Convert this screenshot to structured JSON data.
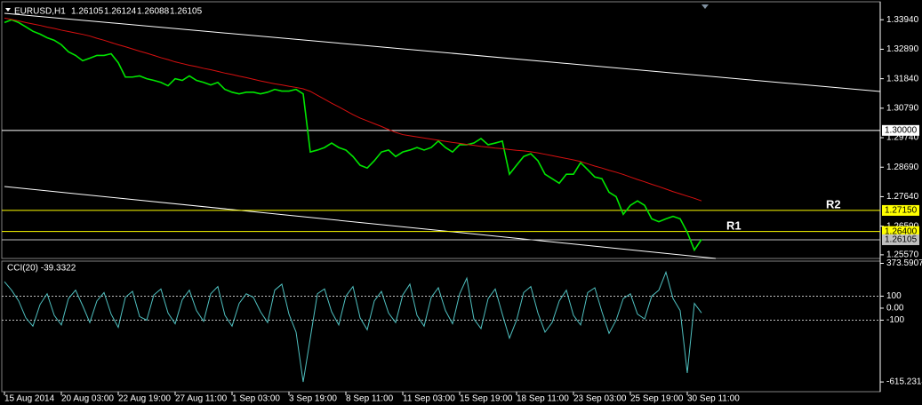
{
  "chart_data": [
    {
      "type": "line",
      "title": "EURUSD,H1",
      "ohlc": [
        1.26105,
        1.26124,
        1.26088,
        1.26105
      ],
      "categories": [
        "15 Aug 2014",
        null,
        null,
        null,
        null,
        null,
        null,
        null,
        "20 Aug 03:00",
        null,
        null,
        null,
        null,
        null,
        null,
        null,
        "22 Aug 19:00",
        null,
        null,
        null,
        null,
        null,
        null,
        null,
        "27 Aug 11:00",
        null,
        null,
        null,
        null,
        null,
        null,
        null,
        "1 Sep 03:00",
        null,
        null,
        null,
        null,
        null,
        null,
        null,
        "3 Sep 19:00",
        null,
        null,
        null,
        null,
        null,
        null,
        null,
        "8 Sep 11:00",
        null,
        null,
        null,
        null,
        null,
        null,
        null,
        "11 Sep 03:00",
        null,
        null,
        null,
        null,
        null,
        null,
        null,
        "15 Sep 19:00",
        null,
        null,
        null,
        null,
        null,
        null,
        null,
        "18 Sep 11:00",
        null,
        null,
        null,
        null,
        null,
        null,
        null,
        "23 Sep 03:00",
        null,
        null,
        null,
        null,
        null,
        null,
        null,
        "25 Sep 19:00",
        null,
        null,
        null,
        null,
        null,
        null,
        null,
        "30 Sep 11:00",
        null,
        null
      ],
      "series": [
        {
          "color": "#00e600",
          "values": [
            1.3384,
            1.3394,
            1.3384,
            1.3369,
            1.3353,
            1.3343,
            1.333,
            1.3321,
            1.3305,
            1.328,
            1.3267,
            1.3248,
            1.3257,
            1.3267,
            1.3267,
            1.3273,
            1.3241,
            1.319,
            1.319,
            1.3194,
            1.3184,
            1.3178,
            1.3171,
            1.3159,
            1.3184,
            1.3178,
            1.3194,
            1.3178,
            1.3171,
            1.3162,
            1.3171,
            1.3146,
            1.3136,
            1.313,
            1.3136,
            1.3136,
            1.313,
            1.3136,
            1.3146,
            1.314,
            1.314,
            1.3146,
            1.313,
            1.2923,
            1.293,
            1.2939,
            1.2955,
            1.2939,
            1.293,
            1.2907,
            1.2876,
            1.2866,
            1.2892,
            1.2923,
            1.293,
            1.2907,
            1.2923,
            1.293,
            1.2939,
            1.293,
            1.2939,
            1.2962,
            1.2939,
            1.2923,
            1.2949,
            1.2949,
            1.2955,
            1.2971,
            1.2949,
            1.2955,
            1.2962,
            1.2844,
            1.2876,
            1.2907,
            1.2917,
            1.2892,
            1.2844,
            1.2828,
            1.2812,
            1.2844,
            1.2844,
            1.2885,
            1.286,
            1.2834,
            1.2828,
            1.278,
            1.2764,
            1.2701,
            1.2733,
            1.2749,
            1.2733,
            1.2685,
            1.2675,
            1.2685,
            1.2694,
            1.2685,
            1.2637,
            1.2574,
            1.2612
          ]
        },
        {
          "color": "#d81010",
          "values": [
            1.34,
            1.3395,
            1.339,
            1.3384,
            1.3379,
            1.3374,
            1.3368,
            1.3363,
            1.3357,
            1.3352,
            1.3347,
            1.3342,
            1.3336,
            1.3328,
            1.3321,
            1.3313,
            1.3305,
            1.3298,
            1.329,
            1.3282,
            1.3275,
            1.3267,
            1.3259,
            1.3252,
            1.3244,
            1.3238,
            1.3232,
            1.3227,
            1.3221,
            1.3216,
            1.321,
            1.3204,
            1.3199,
            1.3193,
            1.3188,
            1.3182,
            1.3176,
            1.3171,
            1.3166,
            1.3162,
            1.3157,
            1.3153,
            1.3148,
            1.3139,
            1.3125,
            1.3111,
            1.3097,
            1.3084,
            1.307,
            1.3056,
            1.3044,
            1.3034,
            1.3024,
            1.3014,
            1.3003,
            1.2993,
            1.2985,
            1.2981,
            1.2977,
            1.2973,
            1.2969,
            1.2965,
            1.2961,
            1.2957,
            1.2954,
            1.295,
            1.2947,
            1.2943,
            1.294,
            1.2937,
            1.2935,
            1.2932,
            1.2929,
            1.2927,
            1.2924,
            1.292,
            1.2915,
            1.291,
            1.2905,
            1.29,
            1.2895,
            1.2889,
            1.2881,
            1.2873,
            1.2866,
            1.2858,
            1.2851,
            1.2843,
            1.2834,
            1.2825,
            1.2817,
            1.2808,
            1.28,
            1.2791,
            1.2782,
            1.2774,
            1.2766,
            1.2758,
            1.2749
          ]
        }
      ],
      "ylim": [
        1.2544,
        1.3458
      ],
      "yticks": [
        {
          "value": 1.3394,
          "label": "1.33940"
        },
        {
          "value": 1.3289,
          "label": "1.32890"
        },
        {
          "value": 1.3184,
          "label": "1.31840"
        },
        {
          "value": 1.3079,
          "label": "1.30790"
        },
        {
          "value": 1.2974,
          "label": "1.29740"
        },
        {
          "value": 1.2869,
          "label": "1.28690"
        },
        {
          "value": 1.2764,
          "label": "1.27640"
        },
        {
          "value": 1.2659,
          "label": "1.26590"
        },
        {
          "value": 1.2557,
          "label": "1.25570"
        }
      ],
      "levels": [
        {
          "value": 1.3,
          "label": "1.30000",
          "color": "#ffffff"
        },
        {
          "value": 1.2715,
          "label": "1.27150",
          "color": "#ffff00"
        },
        {
          "value": 1.264,
          "label": "1.26400",
          "color": "#ffff00"
        },
        {
          "value": 1.26105,
          "label": "1.26105",
          "color": "#c0c0c0"
        }
      ],
      "annotations": [
        "R1",
        "R2"
      ],
      "grid": false
    },
    {
      "type": "line",
      "title": "CCI(20) -39.3322",
      "series": [
        {
          "color": "#4fc0c0",
          "values": [
            220,
            150,
            60,
            -80,
            -150,
            30,
            120,
            -60,
            -140,
            80,
            150,
            20,
            -120,
            60,
            130,
            -50,
            -160,
            90,
            140,
            -70,
            -100,
            110,
            160,
            -40,
            -130,
            70,
            150,
            -20,
            -110,
            120,
            180,
            -60,
            -150,
            40,
            120,
            90,
            -30,
            -120,
            150,
            200,
            -50,
            -200,
            -615,
            -250,
            120,
            160,
            -30,
            -140,
            100,
            180,
            -80,
            -180,
            60,
            140,
            -40,
            -120,
            110,
            200,
            -60,
            -150,
            90,
            170,
            -20,
            -130,
            120,
            250,
            -90,
            -170,
            80,
            160,
            -50,
            -250,
            -100,
            130,
            180,
            -40,
            -200,
            -120,
            60,
            150,
            -60,
            -140,
            130,
            170,
            -30,
            -210,
            -100,
            80,
            120,
            -50,
            -90,
            100,
            150,
            300,
            80,
            -20,
            -540,
            40,
            -39.3322
          ]
        }
      ],
      "ylim": [
        -696,
        392
      ],
      "yticks": [
        373.5907,
        100,
        {
          "value": 0,
          "label": "0.00"
        },
        -100,
        -615.2314
      ],
      "levels": [
        100,
        -100
      ],
      "grid": false
    }
  ]
}
